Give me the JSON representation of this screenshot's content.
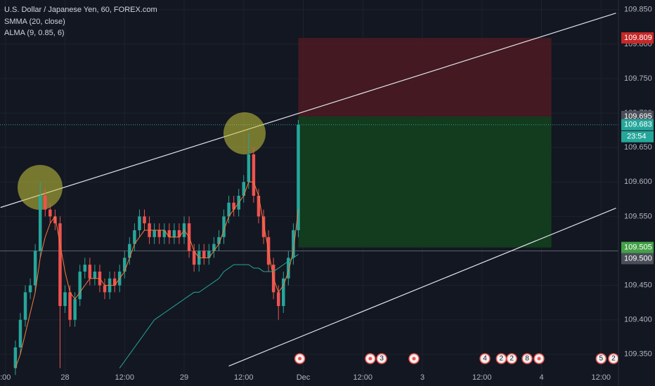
{
  "chart_data": {
    "type": "candlestick",
    "title": "U.S. Dollar / Japanese Yen, 60, FOREX.com",
    "up_color": "#26a69a",
    "down_color": "#ef5350",
    "x": [
      14,
      15,
      16,
      17,
      18,
      19,
      20,
      21,
      22,
      23,
      24,
      25,
      26,
      27,
      28,
      29,
      30,
      31,
      32,
      33,
      34,
      35,
      36,
      37,
      38,
      39,
      40,
      41,
      42,
      43,
      44,
      45,
      46,
      47,
      48,
      49,
      50,
      51,
      52,
      53,
      54,
      55,
      56,
      57,
      58,
      59,
      60,
      61,
      62,
      63,
      64,
      65,
      66,
      67,
      68,
      69,
      70,
      71
    ],
    "open": [
      109.33,
      109.36,
      109.4,
      109.44,
      109.45,
      109.5,
      109.58,
      109.56,
      109.55,
      109.54,
      109.42,
      109.44,
      109.4,
      109.43,
      109.47,
      109.48,
      109.46,
      109.47,
      109.45,
      109.44,
      109.46,
      109.45,
      109.47,
      109.49,
      109.51,
      109.53,
      109.55,
      109.54,
      109.52,
      109.53,
      109.52,
      109.53,
      109.52,
      109.53,
      109.52,
      109.54,
      109.5,
      109.48,
      109.5,
      109.49,
      109.5,
      109.51,
      109.52,
      109.55,
      109.57,
      109.56,
      109.58,
      109.6,
      109.64,
      109.58,
      109.55,
      109.52,
      109.48,
      109.44,
      109.42,
      109.46,
      109.49,
      109.53
    ],
    "high": [
      109.37,
      109.41,
      109.45,
      109.46,
      109.51,
      109.6,
      109.59,
      109.57,
      109.56,
      109.55,
      109.45,
      109.45,
      109.44,
      109.48,
      109.49,
      109.49,
      109.48,
      109.48,
      109.46,
      109.47,
      109.47,
      109.48,
      109.5,
      109.52,
      109.54,
      109.56,
      109.56,
      109.55,
      109.54,
      109.54,
      109.54,
      109.54,
      109.54,
      109.54,
      109.55,
      109.55,
      109.51,
      109.51,
      109.51,
      109.51,
      109.52,
      109.53,
      109.56,
      109.58,
      109.58,
      109.59,
      109.61,
      109.67,
      109.65,
      109.59,
      109.56,
      109.53,
      109.49,
      109.45,
      109.47,
      109.5,
      109.54,
      109.69
    ],
    "low": [
      109.32,
      109.35,
      109.39,
      109.43,
      109.44,
      109.49,
      109.55,
      109.54,
      109.53,
      109.33,
      109.41,
      109.39,
      109.39,
      109.42,
      109.46,
      109.45,
      109.45,
      109.44,
      109.43,
      109.43,
      109.44,
      109.44,
      109.46,
      109.48,
      109.5,
      109.52,
      109.53,
      109.51,
      109.51,
      109.51,
      109.51,
      109.51,
      109.51,
      109.51,
      109.51,
      109.49,
      109.47,
      109.47,
      109.48,
      109.48,
      109.49,
      109.5,
      109.51,
      109.54,
      109.55,
      109.55,
      109.57,
      109.59,
      109.57,
      109.54,
      109.51,
      109.47,
      109.43,
      109.4,
      109.41,
      109.45,
      109.48,
      109.52
    ],
    "close": [
      109.36,
      109.4,
      109.44,
      109.45,
      109.5,
      109.58,
      109.56,
      109.55,
      109.54,
      109.42,
      109.44,
      109.4,
      109.43,
      109.47,
      109.48,
      109.46,
      109.47,
      109.45,
      109.44,
      109.46,
      109.45,
      109.47,
      109.49,
      109.51,
      109.53,
      109.55,
      109.54,
      109.52,
      109.53,
      109.52,
      109.53,
      109.52,
      109.53,
      109.52,
      109.54,
      109.5,
      109.48,
      109.5,
      109.49,
      109.5,
      109.51,
      109.52,
      109.55,
      109.57,
      109.56,
      109.58,
      109.6,
      109.64,
      109.58,
      109.55,
      109.52,
      109.48,
      109.44,
      109.42,
      109.46,
      109.49,
      109.53,
      109.683
    ],
    "series": [
      {
        "name": "SMMA (20, close)",
        "color": "#26a69a",
        "values": [
          null,
          null,
          null,
          null,
          null,
          null,
          null,
          null,
          null,
          null,
          null,
          null,
          null,
          null,
          null,
          null,
          null,
          null,
          null,
          null,
          null,
          109.33,
          109.34,
          109.35,
          109.36,
          109.37,
          109.38,
          109.39,
          109.4,
          109.405,
          109.41,
          109.415,
          109.42,
          109.425,
          109.43,
          109.435,
          109.44,
          109.44,
          109.445,
          109.45,
          109.455,
          109.46,
          109.47,
          109.475,
          109.48,
          109.48,
          109.48,
          109.48,
          109.475,
          109.475,
          109.47,
          109.47,
          109.47,
          109.475,
          109.48,
          109.485,
          109.49,
          109.495
        ]
      },
      {
        "name": "ALMA (9, 0.85, 6)",
        "color": "#f57c3a",
        "values": [
          109.33,
          109.35,
          109.38,
          109.41,
          109.44,
          109.49,
          109.52,
          109.54,
          109.55,
          109.51,
          109.47,
          109.44,
          109.43,
          109.44,
          109.45,
          109.46,
          109.46,
          109.46,
          109.45,
          109.45,
          109.45,
          109.46,
          109.47,
          109.49,
          109.51,
          109.52,
          109.53,
          109.53,
          109.53,
          109.53,
          109.53,
          109.52,
          109.52,
          109.52,
          109.53,
          109.52,
          109.5,
          109.49,
          109.49,
          109.49,
          109.5,
          109.51,
          109.53,
          109.55,
          109.56,
          109.57,
          109.58,
          109.6,
          109.6,
          109.58,
          109.54,
          109.5,
          109.46,
          109.44,
          109.45,
          109.47,
          109.5,
          109.56
        ]
      }
    ],
    "xlim": [
      10.9,
      135.5
    ],
    "xticks": [
      {
        "value": 12,
        "label": ":00"
      },
      {
        "value": 24,
        "label": "28"
      },
      {
        "value": 36,
        "label": "12:00"
      },
      {
        "value": 48,
        "label": "29"
      },
      {
        "value": 60,
        "label": "12:00"
      },
      {
        "value": 72,
        "label": "Dec"
      },
      {
        "value": 84,
        "label": "12:00"
      },
      {
        "value": 96,
        "label": "3"
      },
      {
        "value": 108,
        "label": "12:00"
      },
      {
        "value": 120,
        "label": "4"
      },
      {
        "value": 132,
        "label": "12:00"
      }
    ],
    "ylim": [
      109.304,
      109.864
    ],
    "yticks": [
      {
        "value": 109.35,
        "label": "109.350"
      },
      {
        "value": 109.4,
        "label": "109.400"
      },
      {
        "value": 109.45,
        "label": "109.450"
      },
      {
        "value": 109.5,
        "label": "109.500"
      },
      {
        "value": 109.55,
        "label": "109.550"
      },
      {
        "value": 109.6,
        "label": "109.600"
      },
      {
        "value": 109.65,
        "label": "109.650"
      },
      {
        "value": 109.7,
        "label": "109.700"
      },
      {
        "value": 109.75,
        "label": "109.750"
      },
      {
        "value": 109.8,
        "label": "109.800"
      },
      {
        "value": 109.85,
        "label": "109.850"
      }
    ],
    "grid": true,
    "position": {
      "start": 71,
      "end": 122,
      "target": 109.809,
      "entry": 109.695,
      "stop": 109.505
    },
    "horizontal_line": {
      "value": 109.5,
      "label": "109.500"
    },
    "last_price": 109.683,
    "countdown": "23:54",
    "trendlines": [
      {
        "x": [
          11,
          135
        ],
        "y": [
          109.563,
          109.845
        ]
      },
      {
        "x": [
          57,
          135
        ],
        "y": [
          109.333,
          109.562
        ]
      }
    ],
    "events": [
      {
        "x": 71.3
      },
      {
        "x": 85.5
      },
      {
        "x": 87.8,
        "label": "3"
      },
      {
        "x": 94.3
      },
      {
        "x": 108.6,
        "label": "4"
      },
      {
        "x": 111.9,
        "label": "2"
      },
      {
        "x": 114,
        "label": "2"
      },
      {
        "x": 117.1,
        "label": "8"
      },
      {
        "x": 119.5
      },
      {
        "x": 132,
        "label": "5"
      },
      {
        "x": 134.5,
        "label": "2"
      }
    ]
  }
}
